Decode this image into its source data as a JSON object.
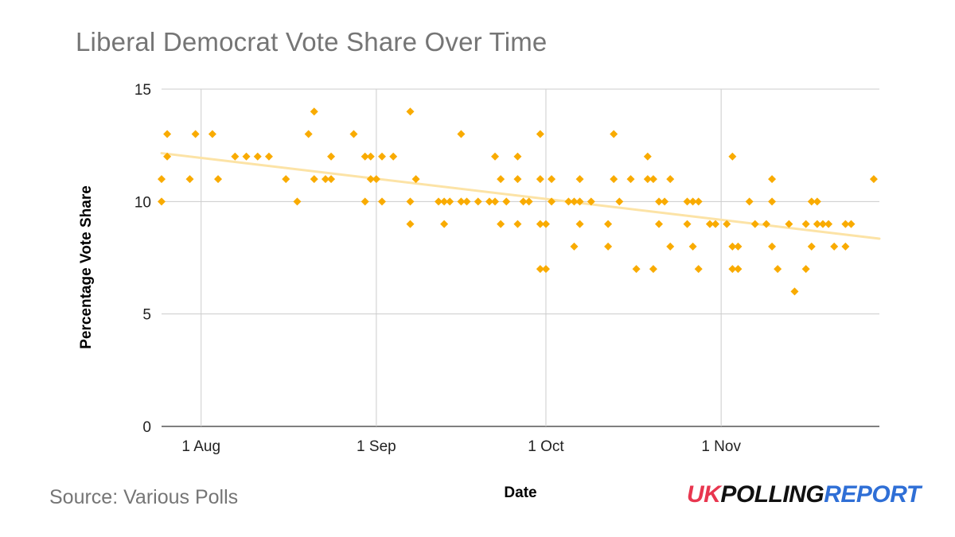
{
  "chart_data": {
    "type": "scatter",
    "title": "Liberal Democrat Vote Share Over Time",
    "xlabel": "Date",
    "ylabel": "Percentage Vote Share",
    "x_type": "date",
    "xlim": [
      "2019-07-25",
      "2019-11-29"
    ],
    "ylim": [
      0,
      15
    ],
    "y_ticks": [
      0,
      5,
      10,
      15
    ],
    "x_ticks": [
      {
        "date": "2019-08-01",
        "label": "1 Aug"
      },
      {
        "date": "2019-09-01",
        "label": "1 Sep"
      },
      {
        "date": "2019-10-01",
        "label": "1 Oct"
      },
      {
        "date": "2019-11-01",
        "label": "1 Nov"
      }
    ],
    "grid": true,
    "marker_color": "#f9ab00",
    "trendline": {
      "color": "#fce3a6",
      "start": [
        "2019-07-25",
        12.15
      ],
      "end": [
        "2019-11-29",
        8.35
      ]
    },
    "points": [
      [
        "2019-07-25",
        11
      ],
      [
        "2019-07-25",
        10
      ],
      [
        "2019-07-26",
        13
      ],
      [
        "2019-07-26",
        12
      ],
      [
        "2019-07-30",
        11
      ],
      [
        "2019-07-31",
        13
      ],
      [
        "2019-08-03",
        13
      ],
      [
        "2019-08-04",
        11
      ],
      [
        "2019-08-07",
        12
      ],
      [
        "2019-08-09",
        12
      ],
      [
        "2019-08-11",
        12
      ],
      [
        "2019-08-13",
        12
      ],
      [
        "2019-08-16",
        11
      ],
      [
        "2019-08-18",
        10
      ],
      [
        "2019-08-20",
        13
      ],
      [
        "2019-08-21",
        14
      ],
      [
        "2019-08-21",
        11
      ],
      [
        "2019-08-23",
        11
      ],
      [
        "2019-08-24",
        12
      ],
      [
        "2019-08-24",
        11
      ],
      [
        "2019-08-28",
        13
      ],
      [
        "2019-08-30",
        12
      ],
      [
        "2019-08-30",
        10
      ],
      [
        "2019-08-31",
        12
      ],
      [
        "2019-08-31",
        11
      ],
      [
        "2019-09-01",
        11
      ],
      [
        "2019-09-02",
        12
      ],
      [
        "2019-09-02",
        10
      ],
      [
        "2019-09-04",
        12
      ],
      [
        "2019-09-07",
        14
      ],
      [
        "2019-09-07",
        10
      ],
      [
        "2019-09-07",
        9
      ],
      [
        "2019-09-08",
        11
      ],
      [
        "2019-09-12",
        10
      ],
      [
        "2019-09-13",
        10
      ],
      [
        "2019-09-13",
        9
      ],
      [
        "2019-09-14",
        10
      ],
      [
        "2019-09-16",
        13
      ],
      [
        "2019-09-16",
        10
      ],
      [
        "2019-09-17",
        10
      ],
      [
        "2019-09-19",
        10
      ],
      [
        "2019-09-21",
        10
      ],
      [
        "2019-09-22",
        12
      ],
      [
        "2019-09-22",
        10
      ],
      [
        "2019-09-23",
        11
      ],
      [
        "2019-09-23",
        9
      ],
      [
        "2019-09-24",
        10
      ],
      [
        "2019-09-26",
        12
      ],
      [
        "2019-09-26",
        11
      ],
      [
        "2019-09-26",
        9
      ],
      [
        "2019-09-27",
        10
      ],
      [
        "2019-09-28",
        10
      ],
      [
        "2019-09-30",
        13
      ],
      [
        "2019-09-30",
        11
      ],
      [
        "2019-09-30",
        9
      ],
      [
        "2019-09-30",
        7
      ],
      [
        "2019-10-01",
        9
      ],
      [
        "2019-10-01",
        7
      ],
      [
        "2019-10-02",
        10
      ],
      [
        "2019-10-02",
        11
      ],
      [
        "2019-10-05",
        10
      ],
      [
        "2019-10-06",
        10
      ],
      [
        "2019-10-06",
        8
      ],
      [
        "2019-10-07",
        11
      ],
      [
        "2019-10-07",
        10
      ],
      [
        "2019-10-07",
        9
      ],
      [
        "2019-10-09",
        10
      ],
      [
        "2019-10-12",
        9
      ],
      [
        "2019-10-12",
        8
      ],
      [
        "2019-10-13",
        13
      ],
      [
        "2019-10-13",
        11
      ],
      [
        "2019-10-14",
        10
      ],
      [
        "2019-10-16",
        11
      ],
      [
        "2019-10-17",
        7
      ],
      [
        "2019-10-19",
        12
      ],
      [
        "2019-10-19",
        11
      ],
      [
        "2019-10-20",
        11
      ],
      [
        "2019-10-20",
        7
      ],
      [
        "2019-10-21",
        10
      ],
      [
        "2019-10-21",
        9
      ],
      [
        "2019-10-22",
        10
      ],
      [
        "2019-10-23",
        11
      ],
      [
        "2019-10-23",
        8
      ],
      [
        "2019-10-26",
        10
      ],
      [
        "2019-10-26",
        9
      ],
      [
        "2019-10-27",
        10
      ],
      [
        "2019-10-27",
        8
      ],
      [
        "2019-10-28",
        10
      ],
      [
        "2019-10-28",
        7
      ],
      [
        "2019-10-30",
        9
      ],
      [
        "2019-10-31",
        9
      ],
      [
        "2019-11-02",
        9
      ],
      [
        "2019-11-03",
        12
      ],
      [
        "2019-11-03",
        8
      ],
      [
        "2019-11-03",
        7
      ],
      [
        "2019-11-04",
        8
      ],
      [
        "2019-11-04",
        7
      ],
      [
        "2019-11-06",
        10
      ],
      [
        "2019-11-07",
        9
      ],
      [
        "2019-11-09",
        9
      ],
      [
        "2019-11-10",
        11
      ],
      [
        "2019-11-10",
        10
      ],
      [
        "2019-11-10",
        8
      ],
      [
        "2019-11-11",
        7
      ],
      [
        "2019-11-13",
        9
      ],
      [
        "2019-11-14",
        6
      ],
      [
        "2019-11-16",
        9
      ],
      [
        "2019-11-16",
        7
      ],
      [
        "2019-11-17",
        10
      ],
      [
        "2019-11-17",
        8
      ],
      [
        "2019-11-18",
        10
      ],
      [
        "2019-11-18",
        9
      ],
      [
        "2019-11-19",
        9
      ],
      [
        "2019-11-20",
        9
      ],
      [
        "2019-11-21",
        8
      ],
      [
        "2019-11-23",
        9
      ],
      [
        "2019-11-23",
        8
      ],
      [
        "2019-11-24",
        9
      ],
      [
        "2019-11-28",
        11
      ]
    ]
  },
  "footer": {
    "source": "Source: Various Polls",
    "logo": {
      "part1": "UK",
      "part2": "POLLING",
      "part3": "REPORT"
    }
  }
}
